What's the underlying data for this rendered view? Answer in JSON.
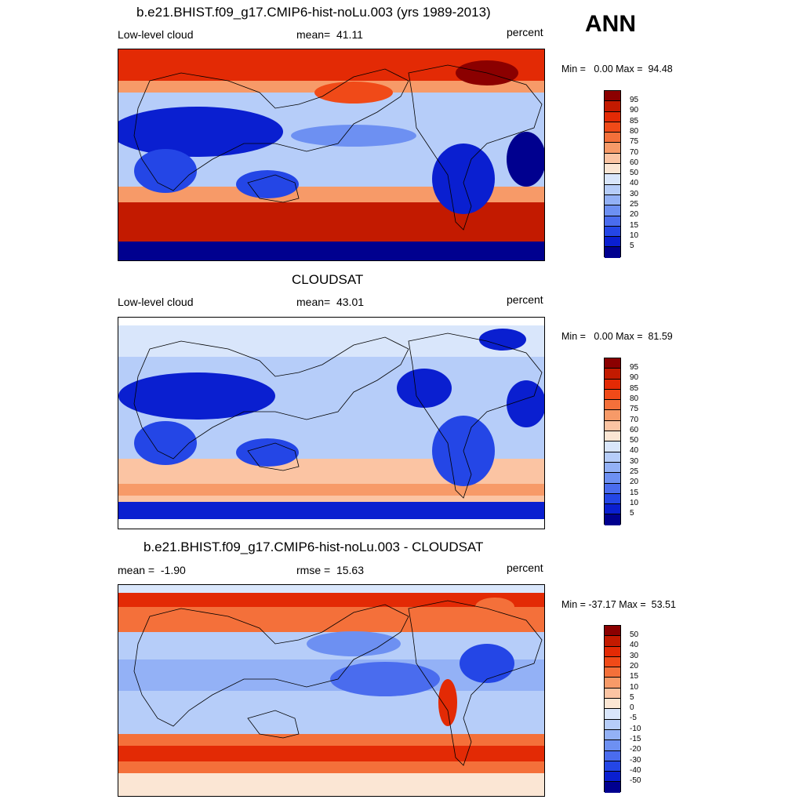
{
  "season": "ANN",
  "panels": [
    {
      "title": "b.e21.BHIST.f09_g17.CMIP6-hist-noLu.003 (yrs 1989-2013)",
      "left_label": "Low-level cloud",
      "center_label": "mean=  41.11",
      "right_label": "percent",
      "minmax": "Min =   0.00 Max =  94.48",
      "colorbar": "abs"
    },
    {
      "title": "CLOUDSAT",
      "left_label": "Low-level cloud",
      "center_label": "mean=  43.01",
      "right_label": "percent",
      "minmax": "Min =   0.00 Max =  81.59",
      "colorbar": "abs"
    },
    {
      "title": "b.e21.BHIST.f09_g17.CMIP6-hist-noLu.003 - CLOUDSAT",
      "left_label": "mean =  -1.90",
      "center_label": "rmse =  15.63",
      "right_label": "percent",
      "minmax": "Min = -37.17 Max =  53.51",
      "colorbar": "diff"
    }
  ],
  "colorbars": {
    "abs": {
      "labels": [
        "95",
        "90",
        "85",
        "80",
        "75",
        "70",
        "60",
        "50",
        "40",
        "30",
        "25",
        "20",
        "15",
        "10",
        "5"
      ],
      "colors": [
        "#8b0000",
        "#c31a00",
        "#e32a05",
        "#f04a18",
        "#f4703a",
        "#f79a68",
        "#fbc4a3",
        "#fbe6d4",
        "#d9e6fb",
        "#b6cdf9",
        "#93b1f6",
        "#6d90f2",
        "#4a6cee",
        "#2446e6",
        "#0a1fd0",
        "#00008f"
      ]
    },
    "diff": {
      "labels": [
        "50",
        "40",
        "30",
        "20",
        "15",
        "10",
        "5",
        "0",
        "-5",
        "-10",
        "-15",
        "-20",
        "-30",
        "-40",
        "-50"
      ],
      "colors": [
        "#8b0000",
        "#c31a00",
        "#e32a05",
        "#f04a18",
        "#f4703a",
        "#f79a68",
        "#fbc4a3",
        "#fbe6d4",
        "#d9e6fb",
        "#b6cdf9",
        "#93b1f6",
        "#6d90f2",
        "#4a6cee",
        "#2446e6",
        "#0a1fd0",
        "#00008f"
      ]
    }
  }
}
